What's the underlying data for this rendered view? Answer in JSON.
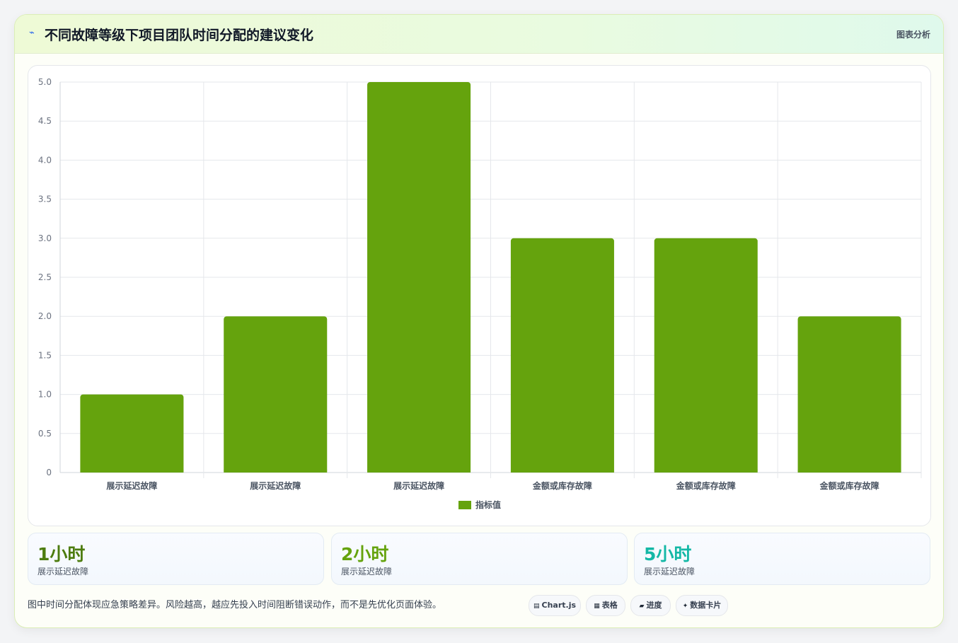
{
  "header": {
    "icon": "spark-icon",
    "title": "不同故障等级下项目团队时间分配的建议变化",
    "tag": "图表分析"
  },
  "chart_data": {
    "type": "bar",
    "categories": [
      "展示延迟故障",
      "展示延迟故障",
      "展示延迟故障",
      "金额或库存故障",
      "金额或库存故障",
      "金额或库存故障"
    ],
    "series": [
      {
        "name": "指标值",
        "values": [
          1,
          2,
          5,
          3,
          3,
          2
        ],
        "color": "#65a30d"
      }
    ],
    "ylim": [
      0,
      5
    ],
    "yticks": [
      "0",
      "0.5",
      "1.0",
      "1.5",
      "2.0",
      "2.5",
      "3.0",
      "3.5",
      "4.0",
      "4.5",
      "5.0"
    ],
    "grid": true,
    "legend": "bottom"
  },
  "stats": [
    {
      "value": "1小时",
      "label": "展示延迟故障",
      "color": "#4d7c0f"
    },
    {
      "value": "2小时",
      "label": "展示延迟故障",
      "color": "#65a30d"
    },
    {
      "value": "5小时",
      "label": "展示延迟故障",
      "color": "#14b8a6"
    }
  ],
  "footer": {
    "note": "图中时间分配体现应急策略差异。风险越高，越应先投入时间阻断错误动作，而不是先优化页面体验。",
    "chips": [
      {
        "icon": "chart-icon",
        "glyph": "▤",
        "label": "Chart.js"
      },
      {
        "icon": "table-icon",
        "glyph": "▦",
        "label": "表格"
      },
      {
        "icon": "progress-icon",
        "glyph": "▰",
        "label": "进度"
      },
      {
        "icon": "card-icon",
        "glyph": "✦",
        "label": "数据卡片"
      }
    ]
  }
}
